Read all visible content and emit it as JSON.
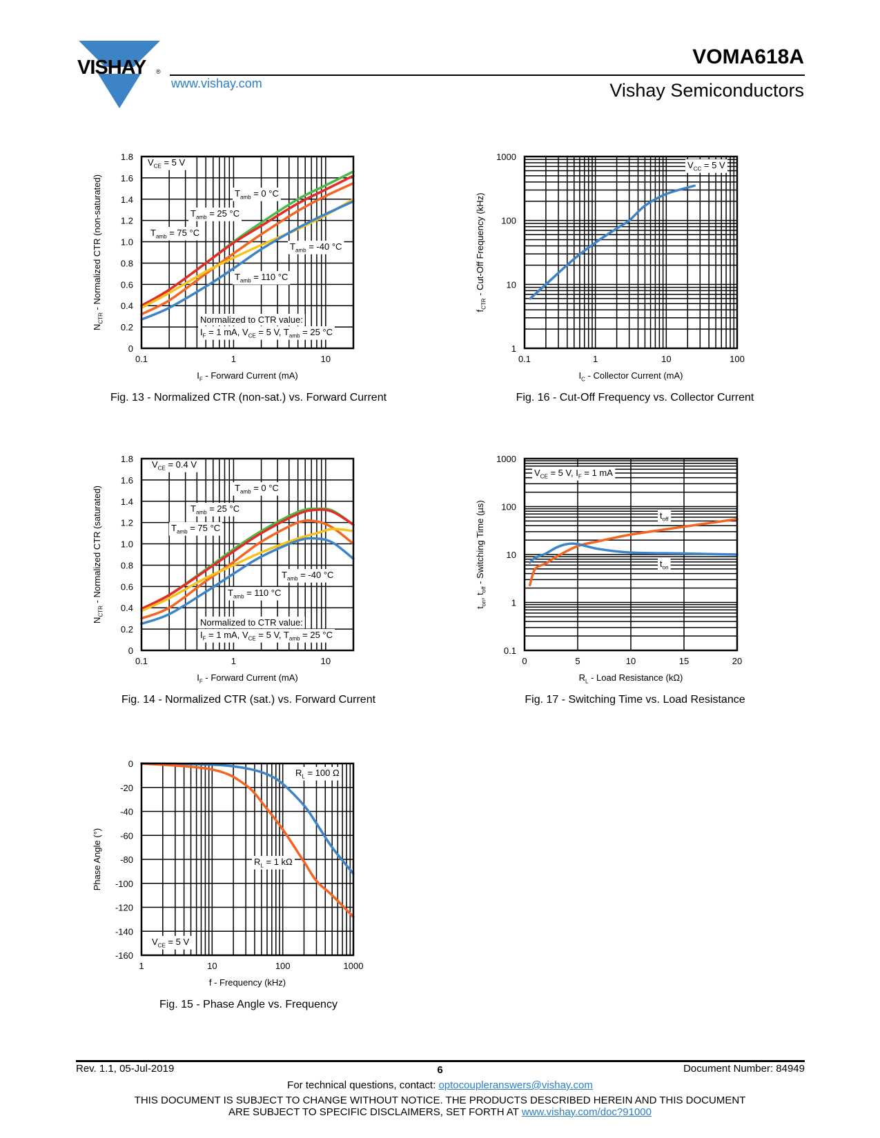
{
  "header": {
    "logo_text": "VISHAY",
    "logo_mark": "®",
    "website": "www.vishay.com",
    "part_number": "VOMA618A",
    "company": "Vishay Semiconductors",
    "brand_color": "#3d84c6"
  },
  "footer": {
    "revision": "Rev. 1.1, 05-Jul-2019",
    "page": "6",
    "document_number": "Document Number: 84949",
    "contact_prefix": "For technical questions, contact: ",
    "contact_email": "optocoupleranswers@vishay.com",
    "disclaimer_line1": "THIS DOCUMENT IS SUBJECT TO CHANGE WITHOUT NOTICE. THE PRODUCTS DESCRIBED HEREIN AND THIS DOCUMENT",
    "disclaimer_line2_prefix": "ARE SUBJECT TO SPECIFIC DISCLAIMERS, SET FORTH AT ",
    "disclaimer_link": "www.vishay.com/doc?91000"
  },
  "chart_data": [
    {
      "id": "fig13",
      "type": "line",
      "caption": "Fig. 13 - Normalized CTR (non-sat.) vs. Forward Current",
      "xlabel": "I_F - Forward Current (mA)",
      "ylabel": "N_CTR - Normalized CTR (non-saturated)",
      "xscale": "log",
      "xlim": [
        0.1,
        20
      ],
      "ylim": [
        0,
        1.8
      ],
      "xticks": [
        0.1,
        1,
        10
      ],
      "xtick_labels": [
        "0.1",
        "1",
        "10"
      ],
      "yticks": [
        0,
        0.2,
        0.4,
        0.6,
        0.8,
        1.0,
        1.2,
        1.4,
        1.6,
        1.8
      ],
      "ytick_labels": [
        "0",
        "0.2",
        "0.4",
        "0.6",
        "0.8",
        "1.0",
        "1.2",
        "1.4",
        "1.6",
        "1.8"
      ],
      "grid": true,
      "annotations": [
        "V_CE = 5 V",
        "T_amb = 0 °C",
        "T_amb = 25 °C",
        "T_amb = 75 °C",
        "T_amb = -40 °C",
        "T_amb = 110 °C",
        "Normalized to CTR value:",
        "I_F = 1 mA, V_CE = 5 V, T_amb = 25 °C"
      ],
      "series": [
        {
          "name": "T_amb = 0 °C",
          "color": "#4cb848",
          "x": [
            0.1,
            0.2,
            0.5,
            1,
            2,
            5,
            10,
            20
          ],
          "y": [
            0.4,
            0.55,
            0.8,
            1.0,
            1.18,
            1.4,
            1.53,
            1.66
          ]
        },
        {
          "name": "T_amb = 25 °C",
          "color": "#e52a2a",
          "x": [
            0.1,
            0.2,
            0.5,
            1,
            2,
            5,
            10,
            20
          ],
          "y": [
            0.4,
            0.55,
            0.8,
            0.99,
            1.15,
            1.36,
            1.49,
            1.62
          ]
        },
        {
          "name": "T_amb = 75 °C",
          "color": "#f26522",
          "x": [
            0.1,
            0.2,
            0.5,
            1,
            2,
            5,
            10,
            20
          ],
          "y": [
            0.32,
            0.45,
            0.7,
            0.89,
            1.07,
            1.29,
            1.43,
            1.55
          ]
        },
        {
          "name": "T_amb = -40 °C",
          "color": "#f7c21a",
          "x": [
            0.1,
            0.2,
            0.5,
            1,
            2,
            5,
            10,
            20
          ],
          "y": [
            0.38,
            0.52,
            0.72,
            0.85,
            0.97,
            1.12,
            1.25,
            1.4
          ]
        },
        {
          "name": "T_amb = 110 °C",
          "color": "#3d84c6",
          "x": [
            0.1,
            0.2,
            0.5,
            1,
            2,
            5,
            10,
            20
          ],
          "y": [
            0.27,
            0.38,
            0.58,
            0.75,
            0.93,
            1.13,
            1.26,
            1.38
          ]
        }
      ]
    },
    {
      "id": "fig16",
      "type": "line",
      "caption": "Fig. 16 - Cut-Off Frequency vs. Collector Current",
      "xlabel": "I_C - Collector Current (mA)",
      "ylabel": "f_CTR - Cut-Off Frequency (kHz)",
      "xscale": "log",
      "yscale": "log",
      "xlim": [
        0.1,
        100
      ],
      "ylim": [
        1,
        1000
      ],
      "xticks": [
        0.1,
        1,
        10,
        100
      ],
      "xtick_labels": [
        "0.1",
        "1",
        "10",
        "100"
      ],
      "yticks": [
        1,
        10,
        100,
        1000
      ],
      "ytick_labels": [
        "1",
        "10",
        "100",
        "1000"
      ],
      "grid": true,
      "annotations": [
        "V_CC = 5 V"
      ],
      "series": [
        {
          "name": "f_CTR",
          "color": "#3d84c6",
          "x": [
            0.12,
            0.2,
            0.5,
            1,
            2,
            3,
            5,
            10,
            25
          ],
          "y": [
            6,
            10,
            25,
            45,
            75,
            100,
            170,
            260,
            350
          ]
        }
      ]
    },
    {
      "id": "fig14",
      "type": "line",
      "caption": "Fig. 14 - Normalized CTR (sat.) vs. Forward Current",
      "xlabel": "I_F - Forward Current (mA)",
      "ylabel": "N_CTR - Normalized CTR (saturated)",
      "xscale": "log",
      "xlim": [
        0.1,
        20
      ],
      "ylim": [
        0,
        1.8
      ],
      "xticks": [
        0.1,
        1,
        10
      ],
      "xtick_labels": [
        "0.1",
        "1",
        "10"
      ],
      "yticks": [
        0,
        0.2,
        0.4,
        0.6,
        0.8,
        1.0,
        1.2,
        1.4,
        1.6,
        1.8
      ],
      "ytick_labels": [
        "0",
        "0.2",
        "0.4",
        "0.6",
        "0.8",
        "1.0",
        "1.2",
        "1.4",
        "1.6",
        "1.8"
      ],
      "grid": true,
      "annotations": [
        "V_CE = 0.4 V",
        "T_amb = 0 °C",
        "T_amb = 25 °C",
        "T_amb = 75 °C",
        "T_amb = -40 °C",
        "T_amb = 110 °C",
        "Normalized to CTR value:",
        "I_F = 1 mA, V_CE = 5 V, T_amb = 25 °C"
      ],
      "series": [
        {
          "name": "T_amb = 0 °C",
          "color": "#4cb848",
          "x": [
            0.1,
            0.2,
            0.5,
            1,
            2,
            5,
            8,
            12,
            20
          ],
          "y": [
            0.39,
            0.52,
            0.76,
            0.95,
            1.12,
            1.3,
            1.33,
            1.31,
            1.18
          ]
        },
        {
          "name": "T_amb = 25 °C",
          "color": "#e52a2a",
          "x": [
            0.1,
            0.2,
            0.5,
            1,
            2,
            5,
            8,
            12,
            20
          ],
          "y": [
            0.39,
            0.52,
            0.75,
            0.93,
            1.1,
            1.28,
            1.32,
            1.3,
            1.18
          ]
        },
        {
          "name": "T_amb = 75 °C",
          "color": "#f26522",
          "x": [
            0.1,
            0.2,
            0.5,
            1,
            2,
            5,
            8,
            12,
            20
          ],
          "y": [
            0.3,
            0.4,
            0.65,
            0.83,
            1.02,
            1.2,
            1.21,
            1.15,
            1.0
          ]
        },
        {
          "name": "T_amb = -40 °C",
          "color": "#f7c21a",
          "x": [
            0.1,
            0.2,
            0.5,
            1,
            2,
            5,
            8,
            12,
            20
          ],
          "y": [
            0.37,
            0.49,
            0.68,
            0.8,
            0.92,
            1.05,
            1.1,
            1.14,
            1.12
          ]
        },
        {
          "name": "T_amb = 110 °C",
          "color": "#3d84c6",
          "x": [
            0.1,
            0.2,
            0.5,
            1,
            2,
            5,
            8,
            12,
            20
          ],
          "y": [
            0.25,
            0.34,
            0.55,
            0.72,
            0.88,
            1.03,
            1.05,
            1.01,
            0.86
          ]
        }
      ]
    },
    {
      "id": "fig17",
      "type": "line",
      "caption": "Fig. 17 - Switching Time vs. Load Resistance",
      "xlabel": "R_L - Load Resistance (kΩ)",
      "ylabel": "t_on, t_off - Switching Time (µs)",
      "yscale": "log",
      "xlim": [
        0,
        20
      ],
      "ylim": [
        0.1,
        1000
      ],
      "xticks": [
        0,
        5,
        10,
        15,
        20
      ],
      "xtick_labels": [
        "0",
        "5",
        "10",
        "15",
        "20"
      ],
      "yticks": [
        0.1,
        1,
        10,
        100,
        1000
      ],
      "ytick_labels": [
        "0.1",
        "1",
        "10",
        "100",
        "1000"
      ],
      "grid": true,
      "annotations": [
        "V_CE = 5 V, I_F = 1 mA",
        "t_off",
        "t_on"
      ],
      "series": [
        {
          "name": "t_off",
          "color": "#f26522",
          "x": [
            0.5,
            1,
            2,
            3,
            5,
            7,
            10,
            15,
            20
          ],
          "y": [
            2.3,
            5.0,
            6.5,
            9.0,
            15,
            19,
            26,
            38,
            55
          ]
        },
        {
          "name": "t_on",
          "color": "#3d84c6",
          "x": [
            0.5,
            1,
            2,
            3,
            4,
            5,
            7,
            10,
            15,
            20
          ],
          "y": [
            6.8,
            8.5,
            10.5,
            14,
            16.5,
            16.5,
            13,
            11,
            10.5,
            10
          ]
        }
      ]
    },
    {
      "id": "fig15",
      "type": "line",
      "caption": "Fig. 15 - Phase Angle vs. Frequency",
      "xlabel": "f - Frequency (kHz)",
      "ylabel": "Phase Angle (°)",
      "xscale": "log",
      "xlim": [
        1,
        1000
      ],
      "ylim": [
        -160,
        0
      ],
      "xticks": [
        1,
        10,
        100,
        1000
      ],
      "xtick_labels": [
        "1",
        "10",
        "100",
        "1000"
      ],
      "yticks": [
        0,
        -20,
        -40,
        -60,
        -80,
        -100,
        -120,
        -140,
        -160
      ],
      "ytick_labels": [
        "0",
        "-20",
        "-40",
        "-60",
        "-80",
        "-100",
        "-120",
        "-140",
        "-160"
      ],
      "grid": true,
      "annotations": [
        "R_L = 100 Ω",
        "R_L = 1 kΩ",
        "V_CE = 5 V"
      ],
      "series": [
        {
          "name": "R_L = 100 Ω",
          "color": "#3d84c6",
          "x": [
            1,
            10,
            30,
            60,
            100,
            200,
            300,
            500,
            1000
          ],
          "y": [
            0,
            -1,
            -4,
            -9,
            -17,
            -35,
            -50,
            -70,
            -92
          ]
        },
        {
          "name": "R_L = 1 kΩ",
          "color": "#f26522",
          "x": [
            1,
            10,
            30,
            60,
            100,
            200,
            300,
            500,
            1000
          ],
          "y": [
            0,
            -5,
            -18,
            -38,
            -55,
            -82,
            -98,
            -110,
            -128
          ]
        }
      ]
    }
  ]
}
